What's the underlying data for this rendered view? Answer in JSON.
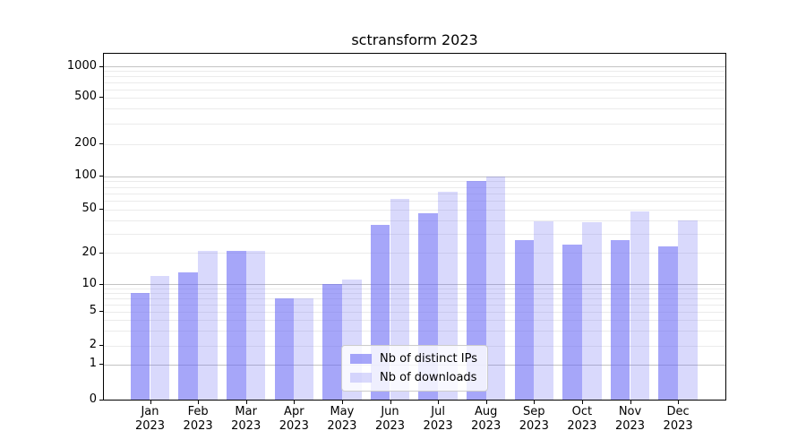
{
  "chart_data": {
    "type": "bar",
    "title": "sctransform 2023",
    "categories": [
      "Jan 2023",
      "Feb 2023",
      "Mar 2023",
      "Apr 2023",
      "May 2023",
      "Jun 2023",
      "Jul 2023",
      "Aug 2023",
      "Sep 2023",
      "Oct 2023",
      "Nov 2023",
      "Dec 2023"
    ],
    "series": [
      {
        "name": "Nb of distinct IPs",
        "color": "rgba(102,102,244,0.58)",
        "values": [
          8,
          13,
          21,
          7,
          10,
          36,
          46,
          90,
          26,
          24,
          26,
          23
        ]
      },
      {
        "name": "Nb of downloads",
        "color": "rgba(102,102,244,0.25)",
        "values": [
          12,
          21,
          21,
          7,
          11,
          62,
          72,
          100,
          39,
          38,
          48,
          40
        ]
      }
    ],
    "xlabel": "",
    "ylabel": "",
    "y_axis_type": "symlog",
    "y_ticks": [
      0,
      1,
      2,
      5,
      10,
      20,
      50,
      100,
      200,
      500,
      1000
    ],
    "ylim": [
      0,
      1300
    ],
    "grid": "horizontal major (powers of 10) + faint log minors",
    "legend_position": "lower center",
    "colors": {
      "bar_base": "#6666f4",
      "grid_major": "#c3c3c3",
      "grid_minor": "#ebebeb",
      "axis": "#000000",
      "background": "#ffffff"
    }
  }
}
